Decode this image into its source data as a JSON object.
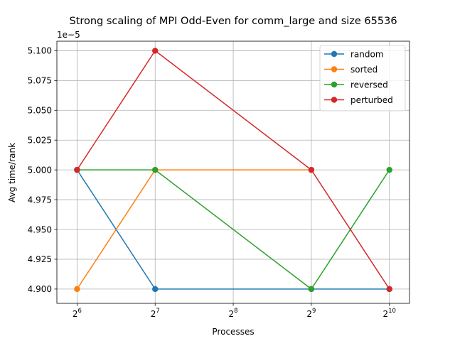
{
  "chart_data": {
    "type": "line",
    "title": "Strong scaling of MPI Odd-Even for comm_large and size 65536",
    "xlabel": "Processes",
    "ylabel": "Avg time/rank",
    "x_scale": "log2",
    "x": [
      64,
      128,
      512,
      1024
    ],
    "xticks": [
      64,
      128,
      256,
      512,
      1024
    ],
    "xtick_labels": [
      {
        "base": "2",
        "exp": "6"
      },
      {
        "base": "2",
        "exp": "7"
      },
      {
        "base": "2",
        "exp": "8"
      },
      {
        "base": "2",
        "exp": "9"
      },
      {
        "base": "2",
        "exp": "10"
      }
    ],
    "y_offset_label": "1e−5",
    "y_multiplier": 1e-05,
    "ylim": [
      4.888,
      5.108
    ],
    "yticks": [
      4.9,
      4.925,
      4.95,
      4.975,
      5.0,
      5.025,
      5.05,
      5.075,
      5.1
    ],
    "ytick_labels": [
      "4.900",
      "4.925",
      "4.950",
      "4.975",
      "5.000",
      "5.025",
      "5.050",
      "5.075",
      "5.100"
    ],
    "grid": true,
    "legend_position": "top-right",
    "series": [
      {
        "name": "random",
        "color": "#1f77b4",
        "x": [
          64,
          128,
          512,
          1024
        ],
        "values": [
          5.0,
          4.9,
          4.9,
          4.9
        ]
      },
      {
        "name": "sorted",
        "color": "#ff7f0e",
        "x": [
          64,
          128,
          512
        ],
        "values": [
          4.9,
          5.0,
          5.0
        ]
      },
      {
        "name": "reversed",
        "color": "#2ca02c",
        "x": [
          64,
          128,
          512,
          1024
        ],
        "values": [
          5.0,
          5.0,
          4.9,
          5.0
        ]
      },
      {
        "name": "perturbed",
        "color": "#d62728",
        "x": [
          64,
          128,
          512,
          1024
        ],
        "values": [
          5.0,
          5.1,
          5.0,
          4.9
        ]
      }
    ]
  }
}
